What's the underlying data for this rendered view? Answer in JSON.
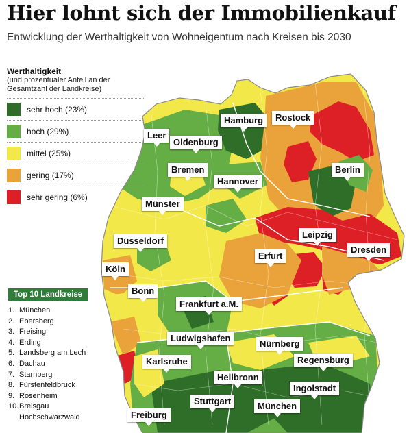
{
  "header": {
    "title": "Hier lohnt sich der Immobilienkauf",
    "subtitle": "Entwicklung der Werthaltigkeit von Wohneigentum nach Kreisen bis 2030"
  },
  "legend": {
    "title": "Werthaltigkeit",
    "subtitle": "(und prozentualer Anteil an der Gesamtzahl der Landkreise)",
    "items": [
      {
        "label": "sehr hoch (23%)",
        "color": "#2f6e28"
      },
      {
        "label": "hoch (29%)",
        "color": "#65ad45"
      },
      {
        "label": "mittel (25%)",
        "color": "#f3e84a"
      },
      {
        "label": "gering (17%)",
        "color": "#eaa33a"
      },
      {
        "label": "sehr gering (6%)",
        "color": "#dd1f26"
      }
    ]
  },
  "top10": {
    "title": "Top 10 Landkreise",
    "items": [
      {
        "num": "1.",
        "name": "München"
      },
      {
        "num": "2.",
        "name": "Ebersberg"
      },
      {
        "num": "3.",
        "name": "Freising"
      },
      {
        "num": "4.",
        "name": "Erding"
      },
      {
        "num": "5.",
        "name": "Landsberg am Lech"
      },
      {
        "num": "6.",
        "name": "Dachau"
      },
      {
        "num": "7.",
        "name": "Starnberg"
      },
      {
        "num": "8.",
        "name": "Fürstenfeldbruck"
      },
      {
        "num": "9.",
        "name": "Rosenheim"
      },
      {
        "num": "10.",
        "name": "Breisgau Hochschwarzwald"
      }
    ]
  },
  "cities": {
    "hamburg": "Hamburg",
    "rostock": "Rostock",
    "leer": "Leer",
    "oldenburg": "Oldenburg",
    "bremen": "Bremen",
    "berlin": "Berlin",
    "hannover": "Hannover",
    "muenster": "Münster",
    "leipzig": "Leipzig",
    "duesseldorf": "Düsseldorf",
    "dresden": "Dresden",
    "erfurt": "Erfurt",
    "koeln": "Köln",
    "bonn": "Bonn",
    "frankfurt": "Frankfurt a.M.",
    "ludwigshafen": "Ludwigshafen",
    "nuernberg": "Nürnberg",
    "karlsruhe": "Karlsruhe",
    "regensburg": "Regensburg",
    "heilbronn": "Heilbronn",
    "ingolstadt": "Ingolstadt",
    "stuttgart": "Stuttgart",
    "muenchen": "München",
    "freiburg": "Freiburg"
  }
}
